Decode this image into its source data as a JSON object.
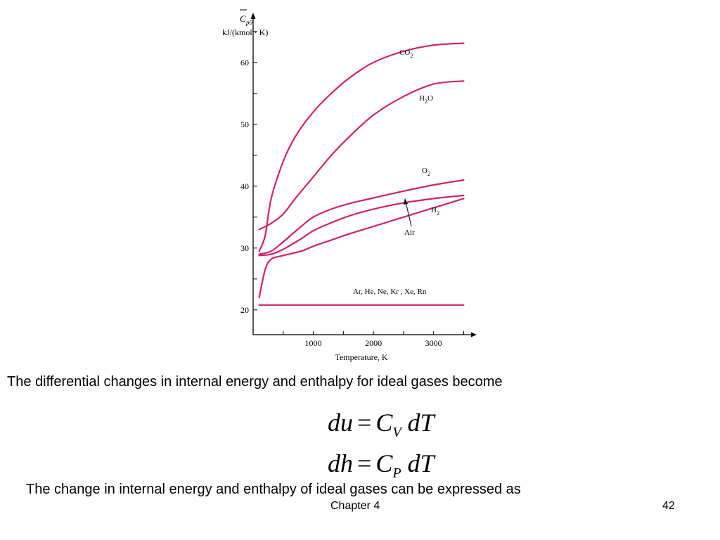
{
  "chart_data": {
    "type": "line",
    "ylabel_symbol": "C",
    "ylabel_sub": "p0",
    "ylabel_units": "kJ/(kmol · K)",
    "xlabel": "Temperature, K",
    "xlim": [
      0,
      3600
    ],
    "ylim": [
      16,
      66
    ],
    "xticks": [
      1000,
      2000,
      3000
    ],
    "yticks": [
      20,
      30,
      40,
      50,
      60
    ],
    "color": "#d1216b",
    "series": [
      {
        "name": "CO2",
        "label_main": "CO",
        "label_sub": "2",
        "x": [
          100,
          200,
          300,
          500,
          700,
          1000,
          1300,
          1600,
          2000,
          2500,
          3000,
          3500
        ],
        "y": [
          29.5,
          32,
          38,
          44,
          48,
          52,
          55,
          57.5,
          60,
          61.8,
          62.8,
          63.1
        ]
      },
      {
        "name": "H2O",
        "label_main": "H",
        "label_sub": "2",
        "label_tail": "O",
        "x": [
          100,
          300,
          500,
          700,
          1000,
          1300,
          1600,
          2000,
          2500,
          3000,
          3500
        ],
        "y": [
          33,
          34,
          35.5,
          38,
          41.5,
          45,
          48,
          51.5,
          54.5,
          56.5,
          57
        ]
      },
      {
        "name": "O2",
        "label_main": "O",
        "label_sub": "2",
        "x": [
          100,
          300,
          500,
          800,
          1000,
          1300,
          1600,
          2000,
          2500,
          3000,
          3500
        ],
        "y": [
          29,
          29.5,
          31,
          33.5,
          35,
          36.3,
          37.2,
          38.1,
          39.2,
          40.2,
          41
        ]
      },
      {
        "name": "Air",
        "x": [
          100,
          300,
          500,
          800,
          1000,
          1300,
          1600,
          2000,
          2500,
          3000,
          3500
        ],
        "y": [
          28.8,
          29,
          29.8,
          31.5,
          32.8,
          34.1,
          35.2,
          36.3,
          37.3,
          38,
          38.5
        ]
      },
      {
        "name": "H2",
        "label_main": "H",
        "label_sub": "2",
        "x": [
          100,
          200,
          300,
          500,
          800,
          1000,
          1300,
          1600,
          2000,
          2500,
          3000,
          3500
        ],
        "y": [
          22,
          26.5,
          28.2,
          28.8,
          29.5,
          30.3,
          31.3,
          32.3,
          33.5,
          35,
          36.5,
          38
        ]
      },
      {
        "name": "Ar, He, Ne, Kr , Xe, Rn",
        "x": [
          100,
          3500
        ],
        "y": [
          20.8,
          20.8
        ]
      }
    ]
  },
  "text": {
    "intro": "The differential changes in internal energy and enthalpy for ideal gases become",
    "eq1_lhs": "du",
    "eq1_C": "C",
    "eq1_sub": "V",
    "eq1_rhs": "dT",
    "eq2_lhs": "dh",
    "eq2_C": "C",
    "eq2_sub": "P",
    "eq2_rhs": "dT",
    "equals": "=",
    "outro": "The change in internal energy and enthalpy of ideal gases can be expressed as"
  },
  "footer": {
    "chapter": "Chapter 4",
    "page": "42"
  }
}
